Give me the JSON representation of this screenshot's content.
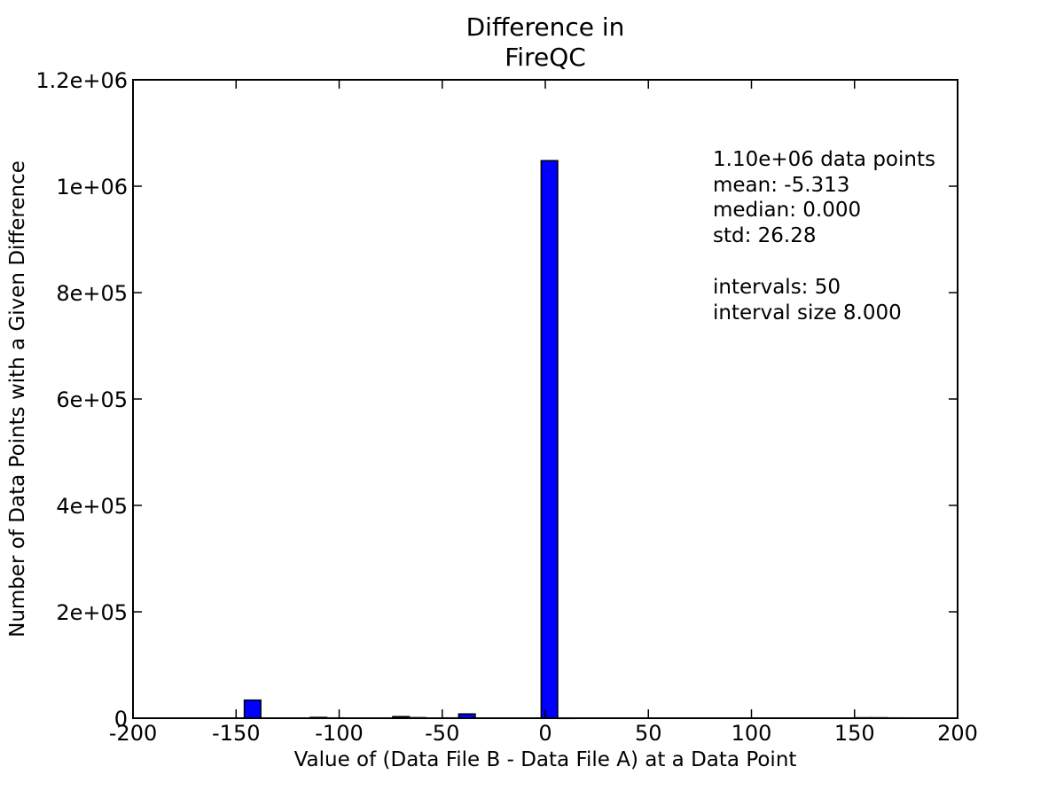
{
  "chart_data": {
    "type": "bar",
    "title_lines": [
      "Difference in",
      "FireQC"
    ],
    "xlabel": "Value of (Data File B - Data File A) at a Data Point",
    "ylabel": "Number of Data Points with a Given Difference",
    "xlim": [
      -200,
      200
    ],
    "ylim": [
      0,
      1200000
    ],
    "x_ticks": [
      -200,
      -150,
      -100,
      -50,
      0,
      50,
      100,
      150,
      200
    ],
    "x_tick_labels": [
      "-200",
      "-150",
      "-100",
      "-50",
      "0",
      "50",
      "100",
      "150",
      "200"
    ],
    "y_ticks": [
      0,
      200000,
      400000,
      600000,
      800000,
      1000000,
      1200000
    ],
    "y_tick_labels": [
      "0",
      "2e+05",
      "4e+05",
      "6e+05",
      "8e+05",
      "1e+06",
      "1.2e+06"
    ],
    "bin_width": 8,
    "bars": [
      {
        "x_start": -146,
        "x_end": -138,
        "count": 34000
      },
      {
        "x_start": -114,
        "x_end": -106,
        "count": 1500
      },
      {
        "x_start": -106,
        "x_end": -98,
        "count": 500
      },
      {
        "x_start": -74,
        "x_end": -66,
        "count": 3000
      },
      {
        "x_start": -66,
        "x_end": -58,
        "count": 1000
      },
      {
        "x_start": -42,
        "x_end": -34,
        "count": 8000
      },
      {
        "x_start": -50,
        "x_end": -42,
        "count": 500
      },
      {
        "x_start": -2,
        "x_end": 6,
        "count": 1048000
      },
      {
        "x_start": 6,
        "x_end": 14,
        "count": 300
      },
      {
        "x_start": 150,
        "x_end": 158,
        "count": 800
      },
      {
        "x_start": 158,
        "x_end": 166,
        "count": 800
      },
      {
        "x_start": 166,
        "x_end": 174,
        "count": 500
      }
    ],
    "bar_color": "#0000ff",
    "bar_edge_color": "#000000",
    "grid": false
  },
  "stats": {
    "lines": [
      "1.10e+06 data points",
      "mean: -5.313",
      "median: 0.000",
      "std: 26.28",
      "",
      "intervals: 50",
      "interval size 8.000"
    ]
  }
}
